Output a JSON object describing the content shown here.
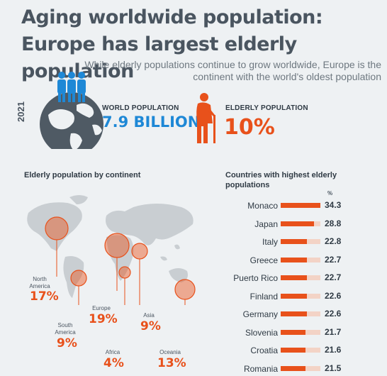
{
  "header": {
    "title": "Aging worldwide population: Europe has largest elderly population",
    "subtitle": "While elderly populations continue to grow worldwide, Europe is the continent with the world's oldest population",
    "year": "2021"
  },
  "stats": {
    "world_label": "WORLD POPULATION",
    "world_value": "7.9 BILLION",
    "elderly_label": "ELDERLY POPULATION",
    "elderly_value": "10%"
  },
  "map_section": {
    "title": "Elderly population by continent",
    "regions": [
      {
        "name": "North America",
        "value": "17%"
      },
      {
        "name": "South America",
        "value": "9%"
      },
      {
        "name": "Europe",
        "value": "19%"
      },
      {
        "name": "Africa",
        "value": "4%"
      },
      {
        "name": "Asia",
        "value": "9%"
      },
      {
        "name": "Oceania",
        "value": "13%"
      }
    ]
  },
  "colors": {
    "accent": "#e8511b",
    "blue": "#1e88d6",
    "dark": "#4a5560",
    "track": "#f3d3c6",
    "map": "#c9ced2"
  },
  "chart_data": {
    "type": "bar",
    "title": "Countries with highest elderly populations",
    "unit": "%",
    "categories": [
      "Monaco",
      "Japan",
      "Italy",
      "Greece",
      "Puerto Rico",
      "Finland",
      "Germany",
      "Slovenia",
      "Croatia",
      "Romania"
    ],
    "values": [
      34.3,
      28.8,
      22.8,
      22.7,
      22.7,
      22.6,
      22.6,
      21.7,
      21.6,
      21.5
    ],
    "xlim": [
      0,
      34.3
    ],
    "grid": false,
    "legend": "none"
  }
}
